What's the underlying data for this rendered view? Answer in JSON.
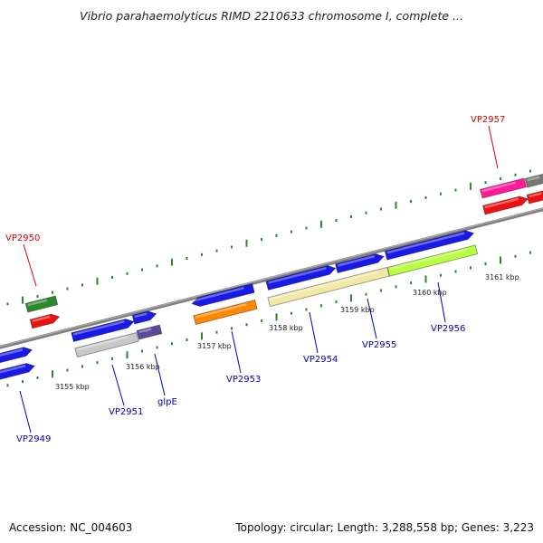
{
  "title": "Vibrio parahaemolyticus RIMD 2210633 chromosome I, complete ...",
  "accession_text": "Accession: NC_004603",
  "stats_text": "Topology: circular; Length: 3,288,558 bp; Genes: 3,223",
  "ruler": {
    "kbp_labels": [
      "3155 kbp",
      "3156 kbp",
      "3157 kbp",
      "3158 kbp",
      "3159 kbp",
      "3160 kbp",
      "3161 kbp"
    ],
    "tick_color": "#2a8a2a"
  },
  "genes": [
    {
      "name": "VP2949",
      "strand": "reverse",
      "label_color": "#0000c0",
      "feature_color": "#1a1ae6"
    },
    {
      "name": "VP2950",
      "strand": "forward",
      "label_color": "#e00000",
      "feature_color": "#2a8a2a",
      "feature2_color": "#ee1111"
    },
    {
      "name": "VP2951",
      "strand": "reverse",
      "label_color": "#0000c0",
      "feature_color": "#1a1ae6",
      "feature2_color": "#c8c8c8"
    },
    {
      "name": "glpE",
      "strand": "forward",
      "label_color": "#0000c0",
      "feature_color": "#1a1ae6",
      "feature2_color": "#5a4a9a"
    },
    {
      "name": "VP2953",
      "strand": "reverse",
      "label_color": "#0000c0",
      "feature_color": "#1a1ae6",
      "feature2_color": "#ff8800"
    },
    {
      "name": "VP2954",
      "strand": "forward",
      "label_color": "#0000c0",
      "feature_color": "#1a1ae6",
      "feature2_color": "#f2e8a6"
    },
    {
      "name": "VP2955",
      "strand": "forward",
      "label_color": "#0000c0",
      "feature_color": "#1a1ae6"
    },
    {
      "name": "VP2956",
      "strand": "forward",
      "label_color": "#0000c0",
      "feature_color": "#1a1ae6",
      "feature2_color": "#b8ff40"
    },
    {
      "name": "VP2957",
      "strand": "forward",
      "label_color": "#e00000",
      "feature_color": "#ff1a9a",
      "feature2_color": "#ee1111",
      "feature3_color": "#777777"
    }
  ]
}
